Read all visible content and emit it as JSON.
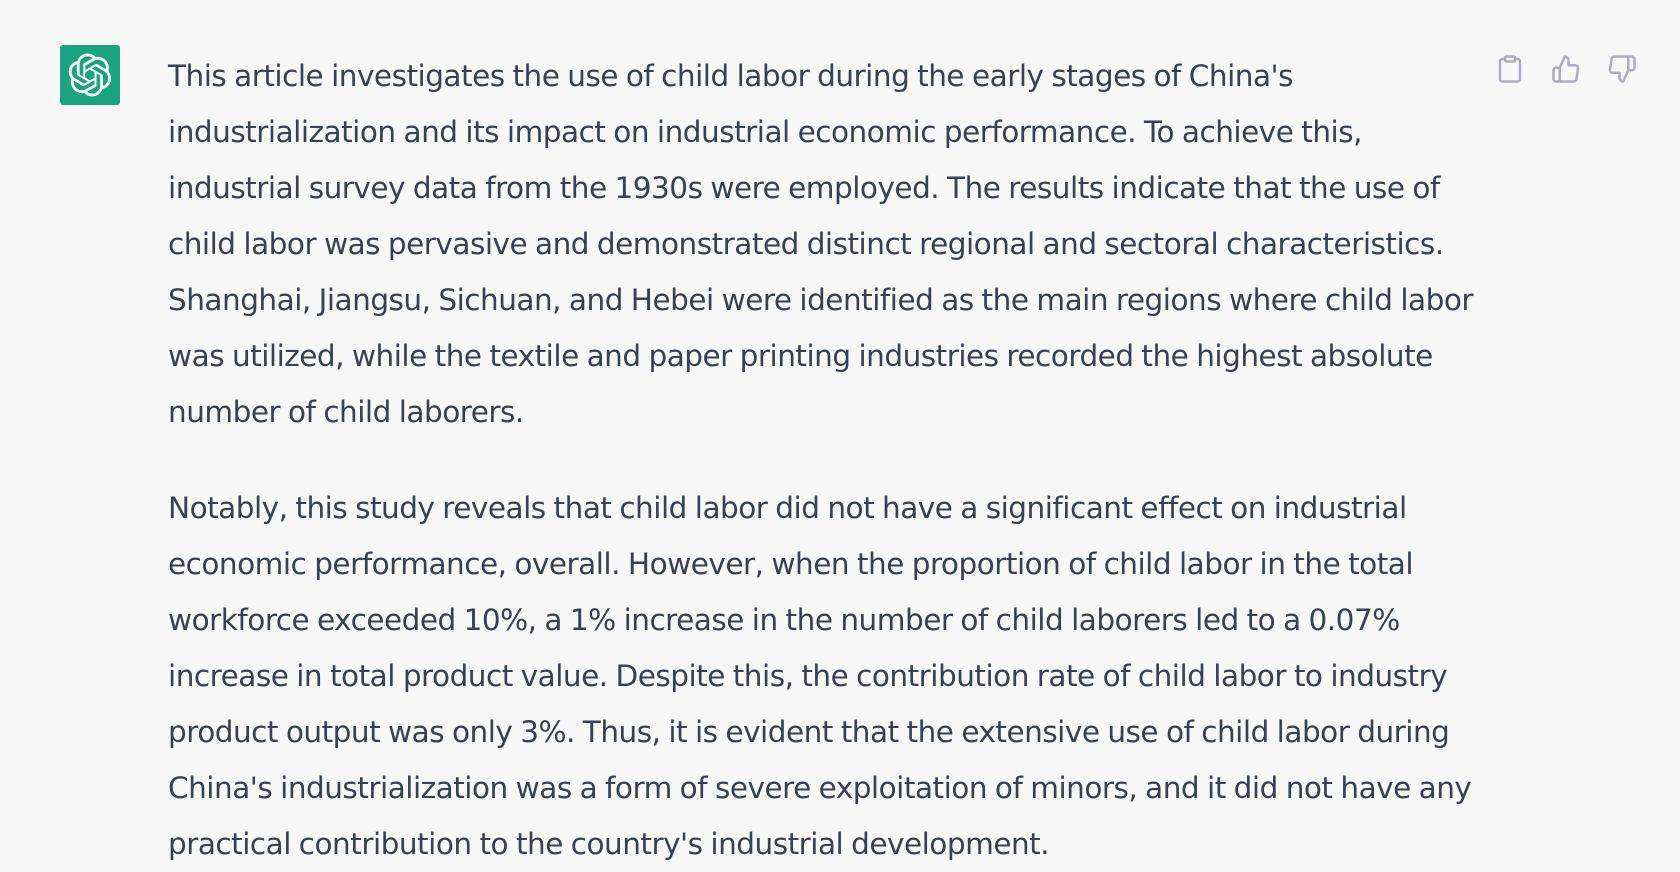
{
  "message": {
    "avatar_icon": "openai-logo-icon",
    "accent_color": "#19a37f",
    "paragraphs": [
      "This article investigates the use of child labor during the early stages of China's industrialization and its impact on industrial economic performance. To achieve this, industrial survey data from the 1930s were employed. The results indicate that the use of child labor was pervasive and demonstrated distinct regional and sectoral characteristics. Shanghai, Jiangsu, Sichuan, and Hebei were identified as the main regions where child labor was utilized, while the textile and paper printing industries recorded the highest absolute number of child laborers.",
      "Notably, this study reveals that child labor did not have a significant effect on industrial economic performance, overall. However, when the proportion of child labor in the total workforce exceeded 10%, a 1% increase in the number of child laborers led to a 0.07% increase in total product value. Despite this, the contribution rate of child labor to industry product output was only 3%. Thus, it is evident that the extensive use of child labor during China's industrialization was a form of severe exploitation of minors, and it did not have any practical contribution to the country's industrial development."
    ]
  },
  "actions": {
    "icons": [
      "clipboard-icon",
      "thumbs-up-icon",
      "thumbs-down-icon"
    ],
    "icon_color": "#acacbe"
  }
}
